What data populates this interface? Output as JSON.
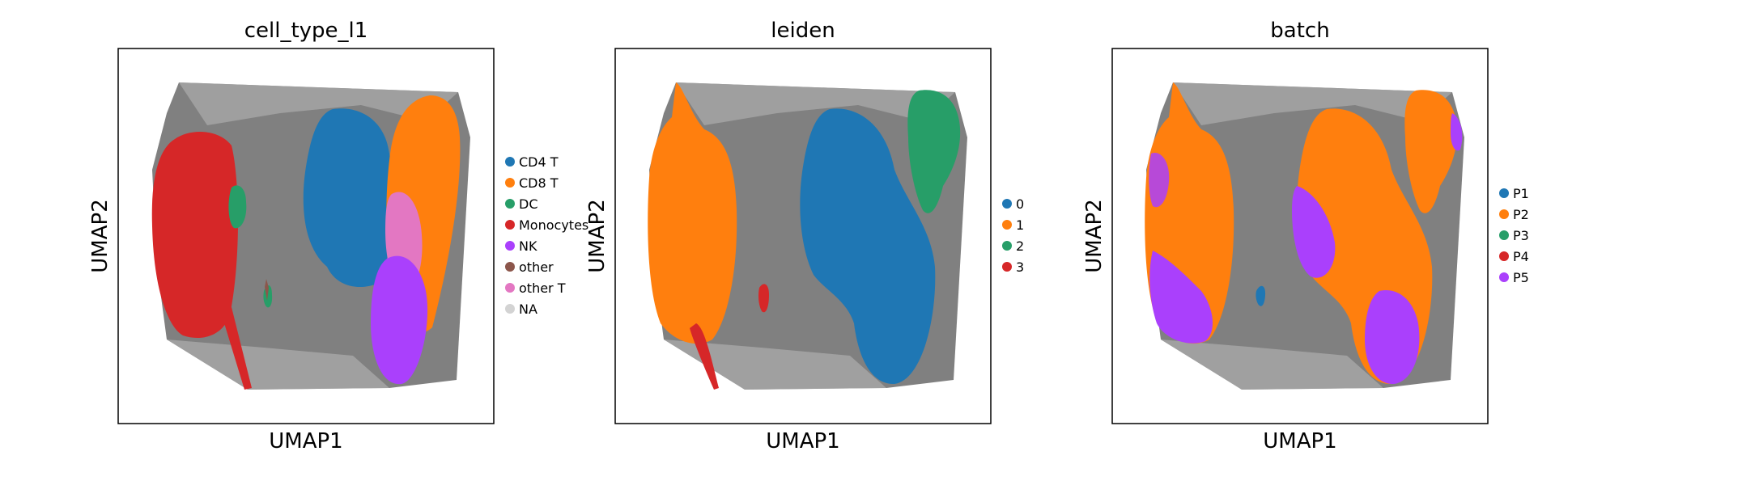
{
  "figure": {
    "panels": [
      {
        "title": "cell_type_l1",
        "xlabel": "UMAP1",
        "ylabel": "UMAP2",
        "legend": [
          {
            "label": "CD4 T",
            "color": "#1f77b4"
          },
          {
            "label": "CD8 T",
            "color": "#ff7f0e"
          },
          {
            "label": "DC",
            "color": "#279e68"
          },
          {
            "label": "Monocytes",
            "color": "#d62728"
          },
          {
            "label": "NK",
            "color": "#aa40fc"
          },
          {
            "label": "other",
            "color": "#8c564b"
          },
          {
            "label": "other T",
            "color": "#e377c2"
          },
          {
            "label": "NA",
            "color": "#d3d3d3"
          }
        ]
      },
      {
        "title": "leiden",
        "xlabel": "UMAP1",
        "ylabel": "UMAP2",
        "legend": [
          {
            "label": "0",
            "color": "#1f77b4"
          },
          {
            "label": "1",
            "color": "#ff7f0e"
          },
          {
            "label": "2",
            "color": "#279e68"
          },
          {
            "label": "3",
            "color": "#d62728"
          }
        ]
      },
      {
        "title": "batch",
        "xlabel": "UMAP1",
        "ylabel": "UMAP2",
        "legend": [
          {
            "label": "P1",
            "color": "#1f77b4"
          },
          {
            "label": "P2",
            "color": "#ff7f0e"
          },
          {
            "label": "P3",
            "color": "#279e68"
          },
          {
            "label": "P4",
            "color": "#d62728"
          },
          {
            "label": "P5",
            "color": "#aa40fc"
          }
        ]
      }
    ]
  },
  "chart_data": [
    {
      "type": "scatter",
      "title": "cell_type_l1",
      "xlabel": "UMAP1",
      "ylabel": "UMAP2",
      "grid": false,
      "legend_position": "right",
      "edges_drawn": true,
      "edge_color": "#808080",
      "categories": [
        "CD4 T",
        "CD8 T",
        "DC",
        "Monocytes",
        "NK",
        "other",
        "other T",
        "NA"
      ],
      "colors": [
        "#1f77b4",
        "#ff7f0e",
        "#279e68",
        "#d62728",
        "#aa40fc",
        "#8c564b",
        "#e377c2",
        "#d3d3d3"
      ]
    },
    {
      "type": "scatter",
      "title": "leiden",
      "xlabel": "UMAP1",
      "ylabel": "UMAP2",
      "grid": false,
      "legend_position": "right",
      "edges_drawn": true,
      "edge_color": "#808080",
      "categories": [
        "0",
        "1",
        "2",
        "3"
      ],
      "colors": [
        "#1f77b4",
        "#ff7f0e",
        "#279e68",
        "#d62728"
      ]
    },
    {
      "type": "scatter",
      "title": "batch",
      "xlabel": "UMAP1",
      "ylabel": "UMAP2",
      "grid": false,
      "legend_position": "right",
      "edges_drawn": true,
      "edge_color": "#808080",
      "categories": [
        "P1",
        "P2",
        "P3",
        "P4",
        "P5"
      ],
      "colors": [
        "#1f77b4",
        "#ff7f0e",
        "#279e68",
        "#d62728",
        "#aa40fc"
      ]
    }
  ]
}
